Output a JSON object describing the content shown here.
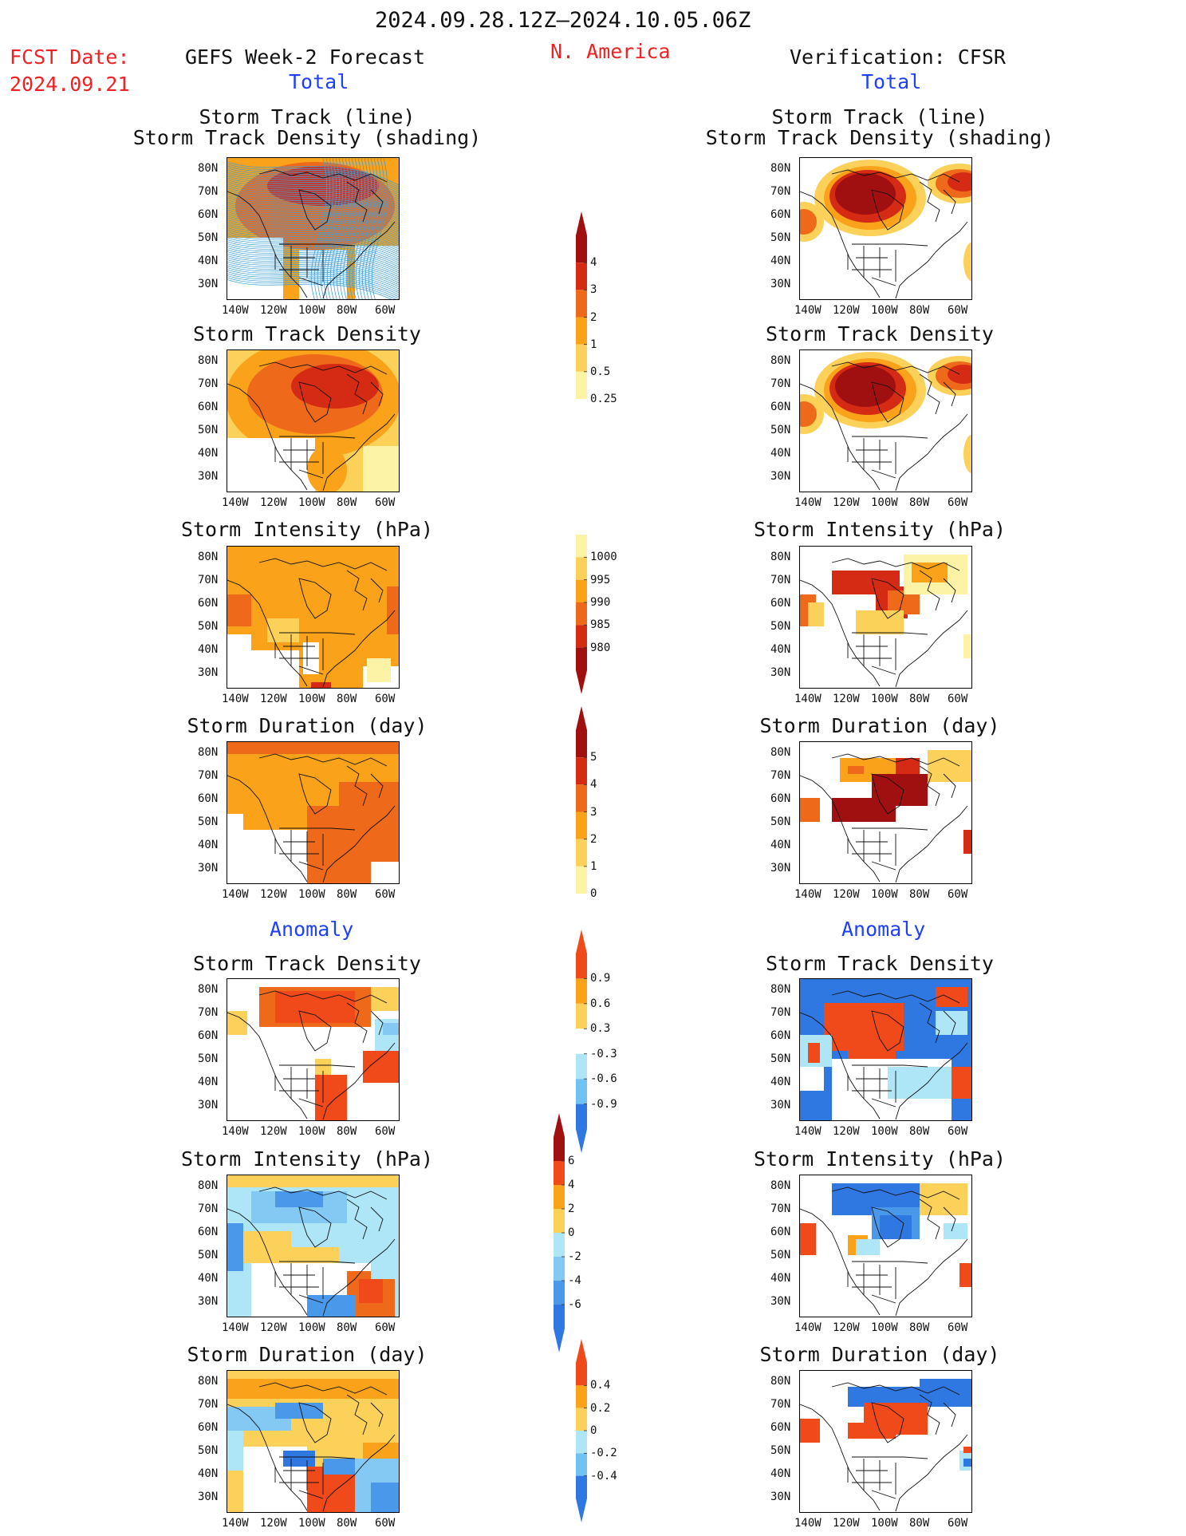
{
  "header": {
    "period": "2024.09.28.12Z–2024.10.05.06Z",
    "fcst_label": "FCST Date:",
    "fcst_date": "2024.09.21",
    "forecast_title": "GEFS Week-2 Forecast",
    "region": "N. America",
    "verification_title": "Verification: CFSR",
    "total_label_left": "Total",
    "total_label_right": "Total",
    "anomaly_label_left": "Anomaly",
    "anomaly_label_right": "Anomaly"
  },
  "panel_titles": {
    "track_line": "Storm Track (line)",
    "track_density_shading": "Storm Track Density (shading)",
    "track_density": "Storm Track Density",
    "intensity": "Storm Intensity (hPa)",
    "duration": "Storm Duration (day)"
  },
  "axes": {
    "lat_labels": [
      "80N",
      "70N",
      "60N",
      "50N",
      "40N",
      "30N"
    ],
    "lon_labels": [
      "140W",
      "120W",
      "100W",
      "80W",
      "60W"
    ]
  },
  "colorbars": {
    "density": {
      "labels": [
        "4",
        "3",
        "2",
        "1",
        "0.5",
        "0.25"
      ],
      "colors": [
        "#a01010",
        "#d52a14",
        "#ee6a1a",
        "#f9a21a",
        "#fbd15a",
        "#fdf3a6"
      ]
    },
    "intensity": {
      "labels": [
        "1000",
        "995",
        "990",
        "985",
        "980"
      ],
      "colors": [
        "#fdf3a6",
        "#fbd15a",
        "#f9a21a",
        "#ee6a1a",
        "#d52a14",
        "#a01010"
      ]
    },
    "duration": {
      "labels": [
        "5",
        "4",
        "3",
        "2",
        "1",
        "0"
      ],
      "colors": [
        "#a01010",
        "#d52a14",
        "#ee6a1a",
        "#f9a21a",
        "#fbd15a",
        "#fdf3a6"
      ]
    },
    "density_anom": {
      "labels": [
        "0.9",
        "0.6",
        "0.3",
        "-0.3",
        "-0.6",
        "-0.9"
      ],
      "colors": [
        "#f04a1a",
        "#f9a21a",
        "#fbd15a",
        "#ffffff",
        "#aee6f7",
        "#6fc2f2",
        "#2f78e2"
      ]
    },
    "intensity_anom": {
      "labels": [
        "6",
        "4",
        "2",
        "0",
        "-2",
        "-4",
        "-6"
      ],
      "colors": [
        "#a01010",
        "#f04a1a",
        "#f9a21a",
        "#fbd15a",
        "#aee6f7",
        "#84c8f4",
        "#4a98ea",
        "#2f78e2"
      ]
    },
    "duration_anom": {
      "labels": [
        "0.4",
        "0.2",
        "0",
        "-0.2",
        "-0.4"
      ],
      "colors": [
        "#f04a1a",
        "#f9a21a",
        "#fbd15a",
        "#aee6f7",
        "#6fc2f2",
        "#2f78e2"
      ]
    }
  }
}
